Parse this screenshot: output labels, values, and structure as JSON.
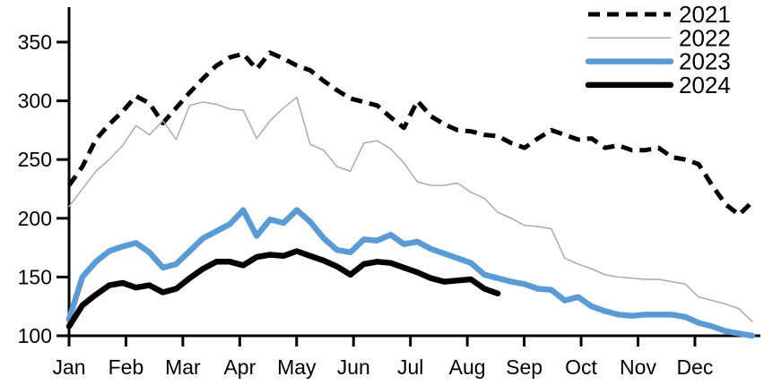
{
  "chart_data": {
    "type": "line",
    "title": "",
    "xlabel": "",
    "ylabel": "",
    "x_resolution": "weekly",
    "x_tick_labels": [
      "Jan",
      "Feb",
      "Mar",
      "Apr",
      "May",
      "Jun",
      "Jul",
      "Aug",
      "Sep",
      "Oct",
      "Nov",
      "Dec"
    ],
    "y_ticks": [
      100,
      150,
      200,
      250,
      300,
      350
    ],
    "ylim": [
      100,
      380
    ],
    "grid": false,
    "legend_position": "top-right",
    "axis_color": "#000000",
    "series": [
      {
        "name": "2021",
        "color": "#000000",
        "line_style": "dashed",
        "line_width": 5,
        "values": [
          228,
          244,
          267,
          280,
          291,
          304,
          298,
          281,
          294,
          307,
          319,
          330,
          337,
          340,
          327,
          341,
          336,
          330,
          326,
          317,
          309,
          302,
          299,
          296,
          286,
          277,
          300,
          287,
          280,
          275,
          274,
          271,
          270,
          264,
          260,
          268,
          275,
          271,
          267,
          268,
          260,
          262,
          258,
          258,
          260,
          252,
          250,
          246,
          228,
          212,
          203,
          214
        ]
      },
      {
        "name": "2022",
        "color": "#a6a6a6",
        "line_style": "solid",
        "line_width": 1.4,
        "values": [
          210,
          225,
          240,
          250,
          262,
          279,
          271,
          283,
          267,
          296,
          299,
          297,
          293,
          292,
          268,
          283,
          294,
          303,
          263,
          258,
          244,
          240,
          264,
          266,
          259,
          247,
          231,
          228,
          228,
          230,
          222,
          217,
          205,
          200,
          194,
          193,
          191,
          166,
          161,
          157,
          152,
          150,
          149,
          148,
          148,
          146,
          144,
          133,
          130,
          127,
          123,
          112
        ]
      },
      {
        "name": "2023",
        "color": "#5b9bd5",
        "line_style": "solid",
        "line_width": 6.5,
        "values": [
          114,
          150,
          163,
          172,
          176,
          179,
          171,
          158,
          161,
          172,
          183,
          189,
          195,
          207,
          185,
          199,
          196,
          207,
          197,
          183,
          173,
          171,
          182,
          181,
          186,
          178,
          180,
          174,
          170,
          166,
          162,
          152,
          149,
          146,
          144,
          140,
          139,
          130,
          133,
          125,
          121,
          118,
          117,
          118,
          118,
          118,
          116,
          111,
          108,
          104,
          102,
          100
        ]
      },
      {
        "name": "2024",
        "color": "#000000",
        "line_style": "solid",
        "line_width": 6.5,
        "values": [
          108,
          126,
          135,
          143,
          145,
          141,
          143,
          137,
          140,
          149,
          157,
          163,
          163,
          160,
          167,
          169,
          168,
          172,
          168,
          164,
          159,
          152,
          161,
          163,
          162,
          158,
          154,
          149,
          146,
          147,
          148,
          140,
          136
        ]
      }
    ]
  }
}
